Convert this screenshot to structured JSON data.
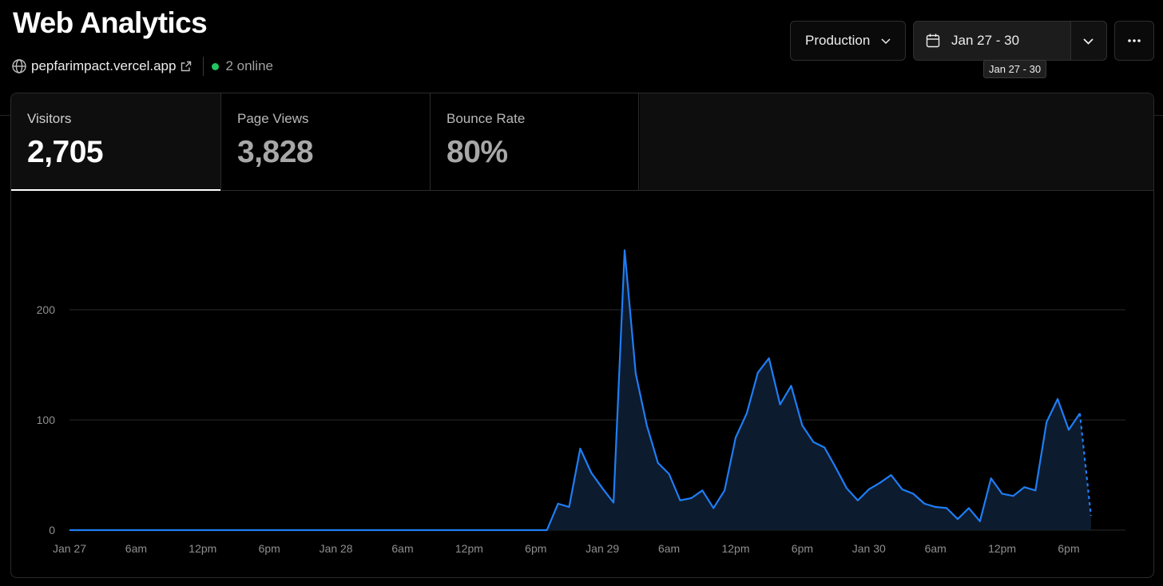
{
  "header": {
    "title": "Web Analytics",
    "domain": "pepfarimpact.vercel.app",
    "online": "2 online",
    "online_color": "#22c55e"
  },
  "controls": {
    "environment": "Production",
    "date_range": "Jan 27 - 30",
    "tooltip": "Jan 27 - 30",
    "more_icon": "ellipsis-icon"
  },
  "metrics": [
    {
      "label": "Visitors",
      "value": "2,705",
      "active": true
    },
    {
      "label": "Page Views",
      "value": "3,828",
      "active": false
    },
    {
      "label": "Bounce Rate",
      "value": "80%",
      "active": false
    }
  ],
  "chart_data": {
    "type": "area",
    "series": [
      {
        "values": [
          0,
          0,
          0,
          0,
          0,
          0,
          0,
          0,
          0,
          0,
          0,
          0,
          0,
          0,
          0,
          0,
          0,
          0,
          0,
          0,
          0,
          0,
          0,
          0,
          0,
          0,
          0,
          0,
          0,
          0,
          0,
          0,
          0,
          0,
          0,
          0,
          0,
          0,
          0,
          0,
          0,
          0,
          0,
          0,
          24,
          21,
          74,
          52,
          38,
          25,
          254,
          142,
          95,
          61,
          51,
          27,
          29,
          36,
          20,
          36,
          84,
          106,
          143,
          156,
          114,
          131,
          95,
          80,
          75,
          57,
          38,
          27,
          37,
          43,
          50,
          37,
          33,
          24,
          21,
          20,
          10,
          20,
          8,
          47,
          33,
          31,
          39,
          36,
          98,
          119,
          91,
          106,
          13
        ]
      }
    ],
    "x_start": "Jan 27 00:00",
    "x_interval_hours": 1,
    "x_ticks": [
      "Jan 27",
      "6am",
      "12pm",
      "6pm",
      "Jan 28",
      "6am",
      "12pm",
      "6pm",
      "Jan 29",
      "6am",
      "12pm",
      "6pm",
      "Jan 30",
      "6am",
      "12pm",
      "6pm"
    ],
    "y_ticks": [
      "0",
      "100",
      "200"
    ],
    "ylim": [
      0,
      260
    ],
    "dashed_last_segment": true,
    "line_color": "#1e7ef5",
    "fill_color": "#0d1b2e",
    "grid": true
  }
}
